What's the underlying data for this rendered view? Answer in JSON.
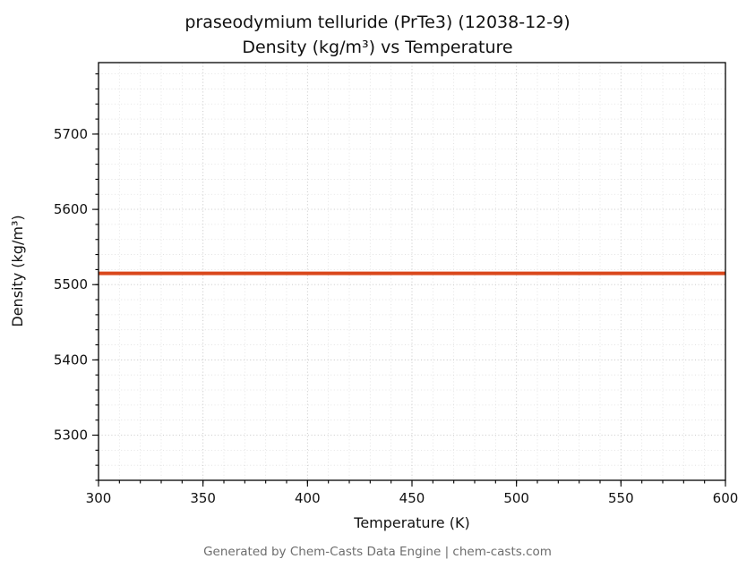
{
  "title_line1": "praseodymium telluride (PrTe3) (12038-12-9)",
  "title_line2": "Density (kg/m³) vs Temperature",
  "footer": "Generated by Chem-Casts Data Engine | chem-casts.com",
  "chart_data": {
    "type": "line",
    "title": "praseodymium telluride (PrTe3) (12038-12-9)\nDensity (kg/m³) vs Temperature",
    "xlabel": "Temperature (K)",
    "ylabel": "Density (kg/m³)",
    "xlim": [
      300,
      600
    ],
    "ylim": [
      5240,
      5795
    ],
    "x_ticks": [
      300,
      350,
      400,
      450,
      500,
      550,
      600
    ],
    "y_ticks": [
      5300,
      5400,
      5500,
      5600,
      5700
    ],
    "x_minor_step": 10,
    "y_minor_step": 20,
    "grid": true,
    "legend": "none",
    "series": [
      {
        "name": "density",
        "color": "#d9481c",
        "x": [
          300,
          600
        ],
        "y": [
          5515,
          5515
        ]
      }
    ]
  }
}
